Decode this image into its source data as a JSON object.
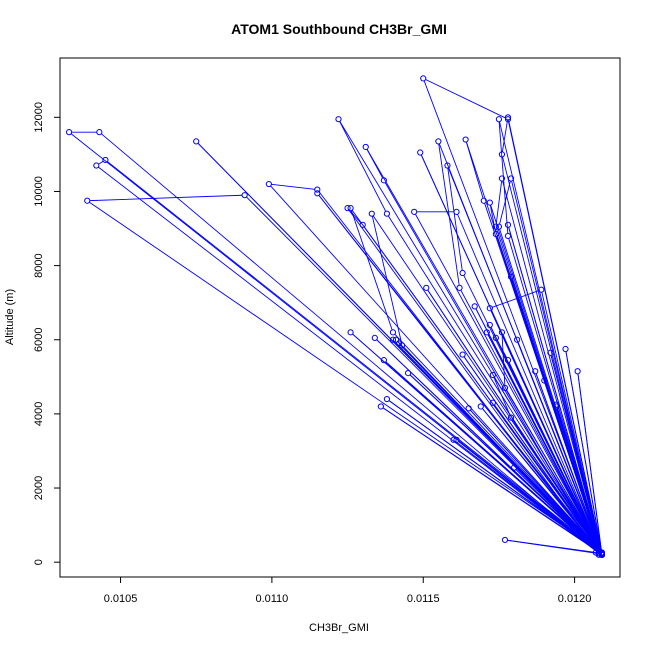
{
  "chart_data": {
    "type": "line",
    "title": "ATOM1 Southbound CH3Br_GMI",
    "xlabel": "CH3Br_GMI",
    "ylabel": "Altitude (m)",
    "xlim": [
      0.0103,
      0.01215
    ],
    "ylim": [
      -400,
      13600
    ],
    "xticks": [
      0.0105,
      0.011,
      0.0115,
      0.012
    ],
    "xtick_labels": [
      "0.0105",
      "0.0110",
      "0.0115",
      "0.0120"
    ],
    "yticks": [
      0,
      2000,
      4000,
      6000,
      8000,
      10000,
      12000
    ],
    "ytick_labels": [
      "0",
      "2000",
      "4000",
      "6000",
      "8000",
      "10000",
      "12000"
    ],
    "grid": false,
    "legend": "none",
    "series_color": "#0000ff",
    "marker": "open-circle",
    "series": [
      {
        "x": [
          0.01209,
          0.01033,
          0.01043,
          0.01208,
          0.01042,
          0.01045,
          0.01209,
          0.01039,
          0.01091,
          0.01209,
          0.01075,
          0.01209,
          0.01099,
          0.01115,
          0.01209,
          0.01115,
          0.01209,
          0.0115,
          0.01178,
          0.01209,
          0.01122,
          0.01138,
          0.01209,
          0.01131,
          0.01137,
          0.01208,
          0.01125,
          0.0113,
          0.01209,
          0.01126,
          0.0114,
          0.01209,
          0.01133,
          0.01143,
          0.01209,
          0.01149,
          0.01209,
          0.01138,
          0.01209,
          0.01136,
          0.01209,
          0.01147,
          0.01161,
          0.01209,
          0.01155,
          0.01162,
          0.01209,
          0.01164,
          0.0117,
          0.01209,
          0.01158,
          0.01163,
          0.01209,
          0.01167,
          0.01209,
          0.01163,
          0.01209,
          0.01151,
          0.01209,
          0.01176,
          0.01174,
          0.01209,
          0.01175,
          0.01178,
          0.01209,
          0.01178,
          0.01176,
          0.01209,
          0.01175,
          0.01179,
          0.01209,
          0.01172,
          0.01174,
          0.01209,
          0.01176,
          0.01177,
          0.01209,
          0.01173,
          0.01179,
          0.01209,
          0.01174,
          0.01178,
          0.01209,
          0.01172,
          0.01209,
          0.01169,
          0.01209,
          0.01171,
          0.01209,
          0.01173,
          0.01209,
          0.01165,
          0.01209,
          0.0116,
          0.01209,
          0.01161,
          0.01209,
          0.01177,
          0.01209,
          0.0118,
          0.01209,
          0.01172,
          0.01189,
          0.01209,
          0.01192,
          0.01209,
          0.01194,
          0.01209,
          0.01197,
          0.01209,
          0.01201,
          0.01209,
          0.01194,
          0.01209,
          0.0119,
          0.01209,
          0.01187,
          0.01209,
          0.01181,
          0.01209,
          0.01179,
          0.01209,
          0.01178,
          0.01209,
          0.01145,
          0.01209,
          0.01142,
          0.01209,
          0.01141,
          0.01209,
          0.0114,
          0.01209,
          0.01137,
          0.01209,
          0.01134,
          0.01209,
          0.01126,
          0.01209,
          0.01207,
          0.01208
        ],
        "y": [
          220,
          11600,
          11600,
          240,
          10700,
          10850,
          260,
          9750,
          9900,
          220,
          11350,
          240,
          10200,
          10050,
          200,
          9950,
          260,
          13050,
          11950,
          200,
          11950,
          9400,
          220,
          11200,
          10300,
          240,
          9550,
          9100,
          220,
          9550,
          6200,
          240,
          9400,
          5850,
          200,
          11050,
          220,
          4400,
          240,
          4200,
          220,
          9450,
          9450,
          200,
          11350,
          7400,
          220,
          11400,
          9750,
          240,
          10700,
          7800,
          220,
          6900,
          200,
          5600,
          220,
          7400,
          240,
          10350,
          9050,
          200,
          11950,
          8800,
          220,
          12000,
          11000,
          240,
          9050,
          10350,
          200,
          9700,
          8850,
          220,
          6200,
          4700,
          240,
          5050,
          3900,
          200,
          6050,
          5450,
          220,
          6400,
          240,
          4200,
          200,
          6200,
          220,
          4300,
          240,
          4150,
          220,
          3300,
          200,
          3300,
          240,
          600,
          220,
          2550,
          200,
          6850,
          7350,
          220,
          5650,
          240,
          4200,
          220,
          5750,
          200,
          5150,
          240,
          4250,
          220,
          4900,
          200,
          5150,
          220,
          6000,
          240,
          7700,
          200,
          9100,
          220,
          5100,
          240,
          5900,
          200,
          6000,
          220,
          6000,
          240,
          5450,
          200,
          6050,
          220,
          6200,
          240,
          260,
          200
        ]
      }
    ]
  }
}
